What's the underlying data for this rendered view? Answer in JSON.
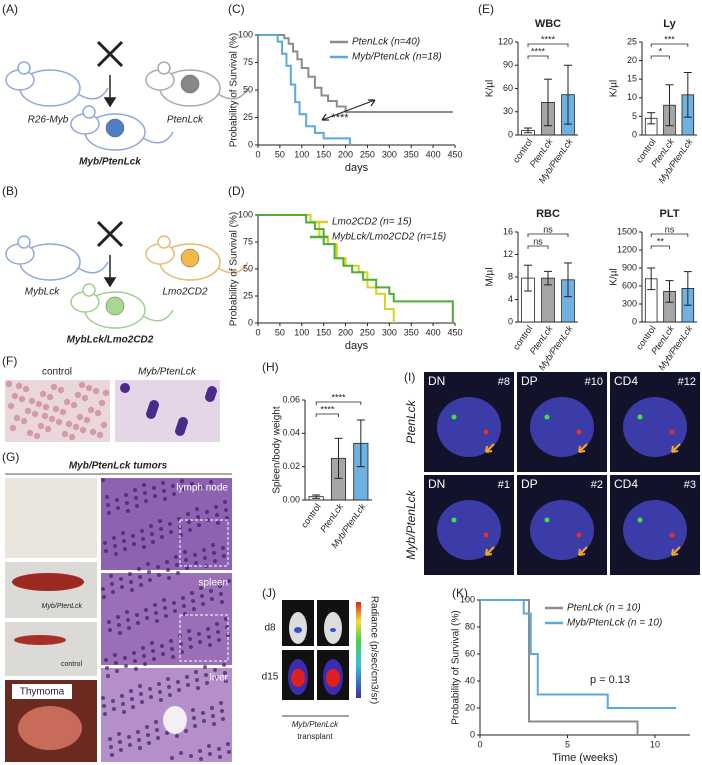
{
  "panels": {
    "labels": [
      "(A)",
      "(B)",
      "(C)",
      "(D)",
      "(E)",
      "(F)",
      "(G)",
      "(H)",
      "(I)",
      "(J)",
      "(K)"
    ]
  },
  "cross_a": {
    "left": "R26-Myb",
    "right": "PtenLck",
    "bottom": "Myb/PtenLck"
  },
  "cross_b": {
    "left": "MybLck",
    "right": "Lmo2CD2",
    "bottom": "MybLck/Lmo2CD2"
  },
  "smears": {
    "labels": [
      "control",
      "Myb/PtenLck"
    ]
  },
  "tumors": {
    "title": "Myb/PtenLck tumors",
    "tissues": [
      "lymph node",
      "spleen",
      "liver"
    ],
    "spleen_tags": [
      "Myb/PtenLck",
      "control"
    ],
    "thymoma": "Thymoma"
  },
  "fish": {
    "rows": [
      "PtenLck",
      "Myb/PtenLck"
    ],
    "cells": [
      [
        {
          "stage": "DN",
          "id": "#8"
        },
        {
          "stage": "DP",
          "id": "#10"
        },
        {
          "stage": "CD4",
          "id": "#12"
        }
      ],
      [
        {
          "stage": "DN",
          "id": "#1"
        },
        {
          "stage": "DP",
          "id": "#2"
        },
        {
          "stage": "CD4",
          "id": "#3"
        }
      ]
    ]
  },
  "imaging": {
    "days": [
      "d8",
      "d15"
    ],
    "colorbar": "Radiance (p/sec/cm3/sr)",
    "caption": [
      "Myb/PtenLck",
      "transplant"
    ]
  },
  "chart_data": [
    {
      "type": "line",
      "xlabel": "days",
      "ylabel": "Probability of Survival (%)",
      "xlim": [
        0,
        450
      ],
      "xticks": [
        0,
        50,
        100,
        150,
        200,
        250,
        300,
        350,
        400,
        450
      ],
      "ylim": [
        0,
        100
      ],
      "yticks": [
        0,
        25,
        50,
        75,
        100
      ],
      "annotations": [
        "****"
      ],
      "series": [
        {
          "name": "PtenLck (n=40)",
          "color": "#8c8c8c",
          "x": [
            0,
            60,
            60,
            70,
            70,
            80,
            80,
            90,
            90,
            100,
            100,
            115,
            115,
            130,
            130,
            145,
            145,
            160,
            160,
            180,
            180,
            200,
            200,
            445
          ],
          "values": [
            100,
            100,
            97,
            97,
            92,
            92,
            85,
            85,
            78,
            78,
            70,
            70,
            62,
            62,
            52,
            52,
            45,
            45,
            40,
            40,
            35,
            35,
            30,
            30
          ]
        },
        {
          "name": "Myb/PtenLck (n=18)",
          "color": "#5aa9de",
          "x": [
            0,
            45,
            45,
            55,
            55,
            65,
            65,
            75,
            75,
            85,
            85,
            95,
            95,
            110,
            110,
            130,
            130,
            150,
            150,
            210,
            210
          ],
          "values": [
            100,
            100,
            94,
            94,
            83,
            83,
            72,
            72,
            55,
            55,
            39,
            39,
            28,
            28,
            17,
            17,
            11,
            11,
            6,
            6,
            0
          ]
        }
      ]
    },
    {
      "type": "line",
      "xlabel": "days",
      "ylabel": "Probability of Survival (%)",
      "xlim": [
        0,
        450
      ],
      "xticks": [
        0,
        50,
        100,
        150,
        200,
        250,
        300,
        350,
        400,
        450
      ],
      "ylim": [
        0,
        100
      ],
      "yticks": [
        0,
        25,
        50,
        75,
        100
      ],
      "annotations": [],
      "series": [
        {
          "name": "Lmo2CD2 (n= 15)",
          "color": "#d8d21c",
          "x": [
            0,
            120,
            120,
            140,
            140,
            160,
            160,
            180,
            180,
            200,
            200,
            230,
            230,
            250,
            250,
            270,
            270,
            290,
            290,
            310,
            310
          ],
          "values": [
            100,
            100,
            93,
            93,
            80,
            80,
            73,
            73,
            60,
            60,
            53,
            53,
            47,
            47,
            33,
            33,
            27,
            27,
            13,
            13,
            0
          ]
        },
        {
          "name": "MybLck/Lmo2CD2 (n=15)",
          "color": "#4bb02e",
          "x": [
            0,
            110,
            110,
            130,
            130,
            150,
            150,
            175,
            175,
            195,
            195,
            215,
            215,
            240,
            240,
            270,
            270,
            300,
            300,
            310,
            310,
            445,
            445
          ],
          "values": [
            100,
            100,
            93,
            93,
            87,
            87,
            73,
            73,
            60,
            60,
            53,
            53,
            47,
            47,
            40,
            40,
            33,
            33,
            27,
            27,
            20,
            20,
            0
          ]
        }
      ]
    },
    {
      "type": "bar",
      "title": "WBC",
      "ylabel": "K/µl",
      "categories": [
        "control",
        "PtenLck",
        "Myb/PtenLck"
      ],
      "values": [
        6,
        42,
        52
      ],
      "errors": [
        3,
        30,
        38
      ],
      "colors": [
        "#ffffff",
        "#a6a6a6",
        "#6fb1e0"
      ],
      "ylim": [
        0,
        120
      ],
      "yticks": [
        0,
        30,
        60,
        90,
        120
      ],
      "significance": [
        "****",
        "****"
      ]
    },
    {
      "type": "bar",
      "title": "Ly",
      "ylabel": "K/µl",
      "categories": [
        "control",
        "PtenLck",
        "Myb/PtenLck"
      ],
      "values": [
        4.5,
        8,
        10.8
      ],
      "errors": [
        1.5,
        5.5,
        6
      ],
      "colors": [
        "#ffffff",
        "#a6a6a6",
        "#6fb1e0"
      ],
      "ylim": [
        0,
        25
      ],
      "yticks": [
        0,
        5,
        10,
        15,
        20,
        25
      ],
      "significance": [
        "*",
        "***"
      ]
    },
    {
      "type": "bar",
      "title": "RBC",
      "ylabel": "M/µl",
      "categories": [
        "control",
        "PtenLck",
        "Myb/PtenLck"
      ],
      "values": [
        7.8,
        7.8,
        7.5
      ],
      "errors": [
        2.3,
        1.2,
        3
      ],
      "colors": [
        "#ffffff",
        "#a6a6a6",
        "#6fb1e0"
      ],
      "ylim": [
        0,
        16
      ],
      "yticks": [
        0,
        4,
        8,
        12,
        16
      ],
      "significance": [
        "ns",
        "ns"
      ]
    },
    {
      "type": "bar",
      "title": "PLT",
      "ylabel": "K/µl",
      "categories": [
        "control",
        "PtenLck",
        "Myb/PtenLck"
      ],
      "values": [
        720,
        510,
        560
      ],
      "errors": [
        180,
        180,
        280
      ],
      "colors": [
        "#ffffff",
        "#a6a6a6",
        "#6fb1e0"
      ],
      "ylim": [
        0,
        1500
      ],
      "yticks": [
        0,
        300,
        600,
        900,
        1200,
        1500
      ],
      "significance": [
        "**",
        "ns"
      ]
    },
    {
      "type": "bar",
      "ylabel": "Spleen/body weight",
      "categories": [
        "control",
        "PtenLck",
        "Myb/PtenLck"
      ],
      "values": [
        0.002,
        0.025,
        0.034
      ],
      "errors": [
        0.001,
        0.012,
        0.014
      ],
      "colors": [
        "#ffffff",
        "#a6a6a6",
        "#6fb1e0"
      ],
      "ylim": [
        0,
        0.06
      ],
      "yticks": [
        {
          "value": 0,
          "label": "0.00"
        },
        0.02,
        0.04,
        0.06
      ],
      "significance": [
        "****",
        "****"
      ]
    },
    {
      "type": "line",
      "xlabel": "Time (weeks)",
      "ylabel": "Probability of Survival (%)",
      "xlim": [
        0,
        12
      ],
      "xticks": [
        0,
        5,
        10
      ],
      "ylim": [
        0,
        100
      ],
      "yticks": [
        0,
        20,
        40,
        60,
        80,
        100
      ],
      "annotations": [
        "p = 0.13"
      ],
      "series": [
        {
          "name": "PtenLck (n = 10)",
          "color": "#8c8c8c",
          "x": [
            0,
            2.8,
            2.8,
            9,
            9
          ],
          "values": [
            100,
            100,
            10,
            10,
            0
          ]
        },
        {
          "name": "Myb/PtenLck (n = 10)",
          "color": "#5aa9de",
          "x": [
            0,
            2.5,
            2.5,
            2.9,
            2.9,
            3.3,
            3.3,
            7.3,
            7.3,
            11.2
          ],
          "values": [
            100,
            100,
            90,
            90,
            60,
            60,
            30,
            30,
            20,
            20
          ]
        }
      ]
    }
  ]
}
